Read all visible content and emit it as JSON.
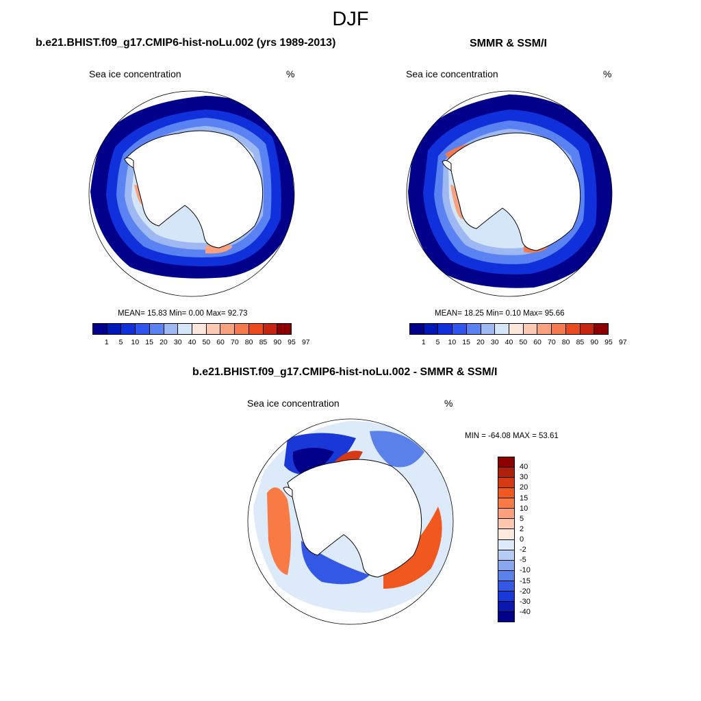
{
  "title": "DJF",
  "colors": {
    "abs_scale": [
      "#00008b",
      "#0018b8",
      "#1030dc",
      "#2f55ee",
      "#5b82f2",
      "#9db8f3",
      "#d5e6f9",
      "#fde6dc",
      "#fccab3",
      "#f8a27f",
      "#f47a4e",
      "#ea4a1e",
      "#c82412",
      "#8b0000"
    ],
    "diff_scale": [
      "#8b0000",
      "#b01f08",
      "#d63a12",
      "#f05820",
      "#f87a45",
      "#fba07a",
      "#fdc8ad",
      "#fde8dc",
      "#ddeaf9",
      "#b5ccf4",
      "#87a8ee",
      "#5a80ea",
      "#3358e6",
      "#1a38d8",
      "#0a18b0",
      "#00008b"
    ],
    "land": "#ffffff",
    "coast": "#000000"
  },
  "panels": {
    "model": {
      "title": "b.e21.BHIST.f09_g17.CMIP6-hist-noLu.002 (yrs 1989-2013)",
      "variable": "Sea ice concentration",
      "units": "%",
      "stats": "MEAN=  15.83  Min=   0.00  Max=  92.73",
      "colorbar_labels": [
        "1",
        "5",
        "10",
        "15",
        "20",
        "30",
        "40",
        "50",
        "60",
        "70",
        "80",
        "85",
        "90",
        "95",
        "97"
      ]
    },
    "obs": {
      "title": "SMMR & SSM/I",
      "variable": "Sea ice concentration",
      "units": "%",
      "stats": "MEAN=  18.25  Min=   0.10  Max=  95.66",
      "colorbar_labels": [
        "1",
        "5",
        "10",
        "15",
        "20",
        "30",
        "40",
        "50",
        "60",
        "70",
        "80",
        "85",
        "90",
        "95",
        "97"
      ]
    },
    "diff": {
      "title": "b.e21.BHIST.f09_g17.CMIP6-hist-noLu.002 - SMMR & SSM/I",
      "variable": "Sea ice concentration",
      "units": "%",
      "stats": "MIN = -64.08 MAX =  53.61",
      "colorbar_labels": [
        "40",
        "30",
        "20",
        "15",
        "10",
        "5",
        "2",
        "0",
        "-2",
        "-5",
        "-10",
        "-15",
        "-20",
        "-30",
        "-40"
      ]
    }
  }
}
